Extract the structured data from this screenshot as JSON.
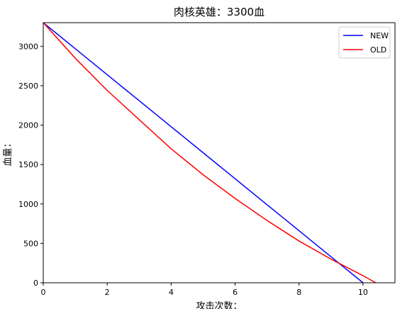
{
  "chart_data": {
    "type": "line",
    "title": "肉核英雄：3300血",
    "xlabel": "攻击次数：",
    "ylabel": "血量：",
    "xlim": [
      0,
      11
    ],
    "ylim": [
      0,
      3300
    ],
    "xticks": [
      0,
      2,
      4,
      6,
      8,
      10
    ],
    "yticks": [
      0,
      500,
      1000,
      1500,
      2000,
      2500,
      3000
    ],
    "grid": false,
    "legend_position": "top-right",
    "series": [
      {
        "name": "NEW",
        "color": "#0000ff",
        "x": [
          0,
          1,
          2,
          3,
          4,
          5,
          6,
          7,
          8,
          9,
          10
        ],
        "y": [
          3300,
          2970,
          2640,
          2310,
          1980,
          1650,
          1320,
          990,
          660,
          330,
          0
        ]
      },
      {
        "name": "OLD",
        "color": "#ff0000",
        "x": [
          0,
          1,
          2,
          3,
          4,
          5,
          6,
          7,
          8,
          9,
          10,
          10.4
        ],
        "y": [
          3300,
          2850,
          2440,
          2070,
          1700,
          1370,
          1070,
          790,
          530,
          300,
          90,
          0
        ]
      }
    ]
  }
}
